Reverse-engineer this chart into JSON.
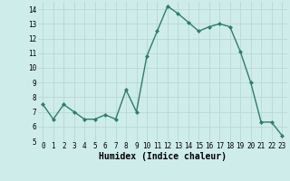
{
  "x": [
    0,
    1,
    2,
    3,
    4,
    5,
    6,
    7,
    8,
    9,
    10,
    11,
    12,
    13,
    14,
    15,
    16,
    17,
    18,
    19,
    20,
    21,
    22,
    23
  ],
  "y": [
    7.5,
    6.5,
    7.5,
    7.0,
    6.5,
    6.5,
    6.8,
    6.5,
    8.5,
    7.0,
    10.8,
    12.5,
    14.2,
    13.7,
    13.1,
    12.5,
    12.8,
    13.0,
    12.8,
    11.1,
    9.0,
    6.3,
    6.3,
    5.4
  ],
  "line_color": "#2e7d6e",
  "marker": "D",
  "marker_size": 2.0,
  "bg_color": "#ceecea",
  "grid_color": "#b8d8d5",
  "xlabel": "Humidex (Indice chaleur)",
  "ylim": [
    5,
    14.5
  ],
  "xlim": [
    -0.5,
    23.5
  ],
  "yticks": [
    5,
    6,
    7,
    8,
    9,
    10,
    11,
    12,
    13,
    14
  ],
  "xticks": [
    0,
    1,
    2,
    3,
    4,
    5,
    6,
    7,
    8,
    9,
    10,
    11,
    12,
    13,
    14,
    15,
    16,
    17,
    18,
    19,
    20,
    21,
    22,
    23
  ],
  "tick_label_fontsize": 5.5,
  "xlabel_fontsize": 7.0,
  "line_width": 1.0
}
